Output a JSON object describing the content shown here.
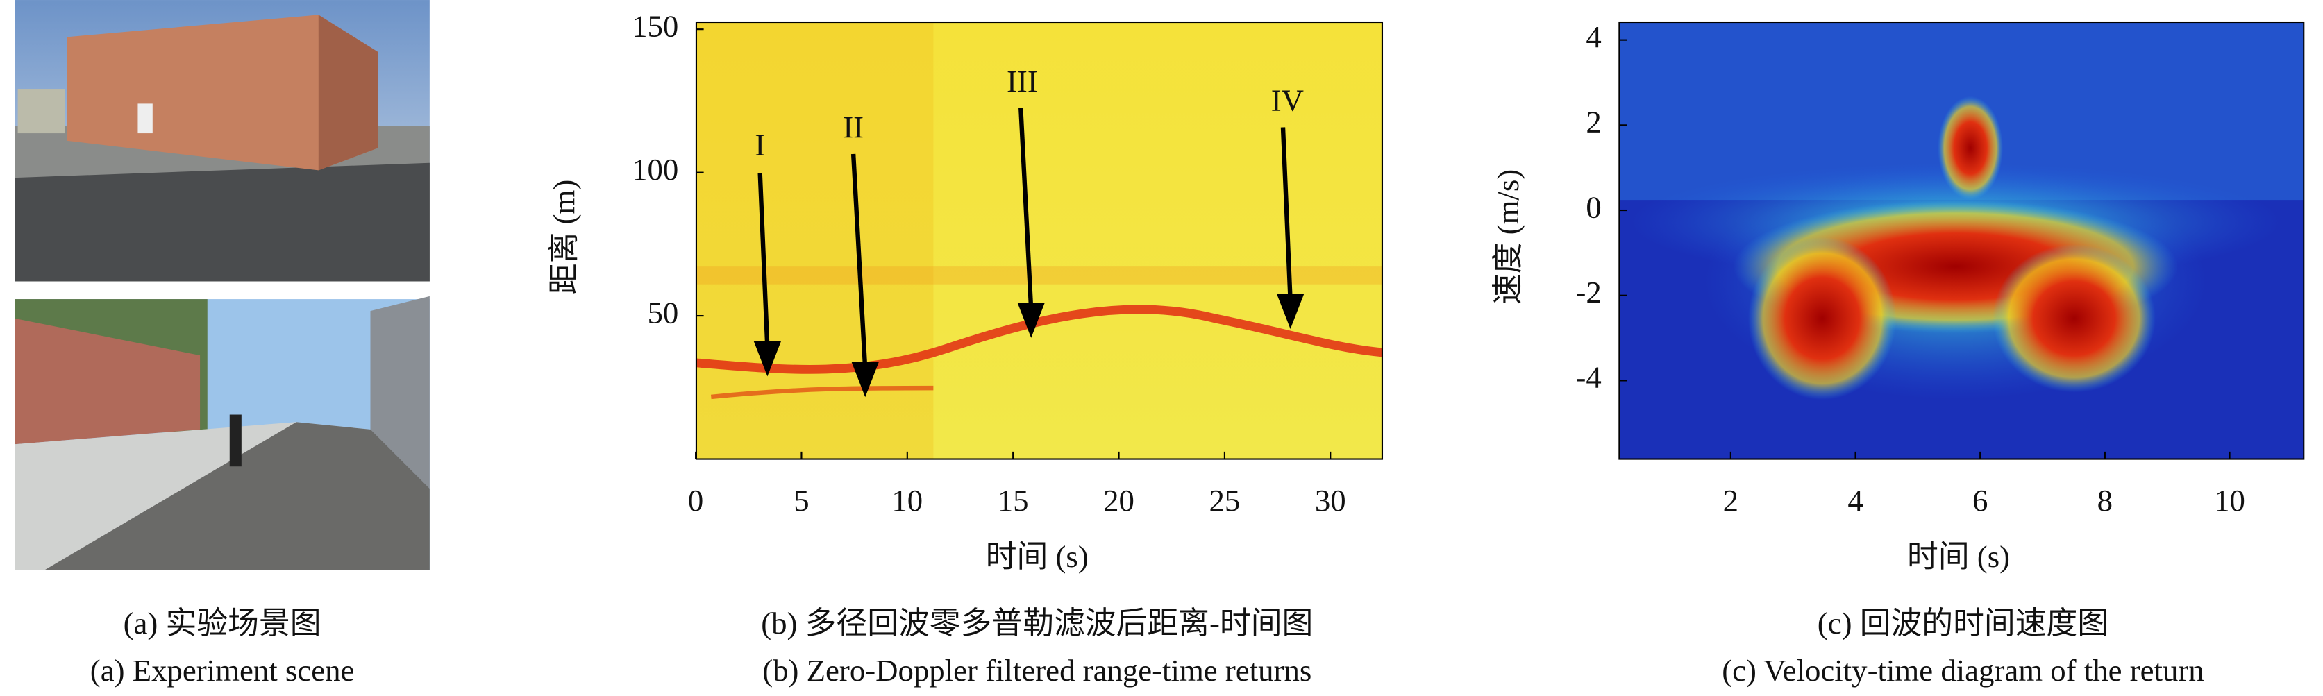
{
  "panels": [
    {
      "caption_zh": "(a) 实验场景图",
      "caption_en": "(a) Experiment scene"
    },
    {
      "caption_zh": "(b) 多径回波零多普勒滤波后距离-时间图",
      "caption_en": "(b) Zero-Doppler filtered range-time returns",
      "xlabel": "时间 (s)",
      "ylabel": "距离 (m)",
      "xticks": [
        0,
        5,
        10,
        15,
        20,
        25,
        30
      ],
      "yticks": [
        50,
        100,
        150
      ],
      "annotations": [
        "I",
        "II",
        "III",
        "IV"
      ]
    },
    {
      "caption_zh": "(c) 回波的时间速度图",
      "caption_en": "(c) Velocity-time diagram of the return",
      "xlabel": "时间 (s)",
      "ylabel": "速度 (m/s)",
      "xticks": [
        2,
        4,
        6,
        8,
        10
      ],
      "yticks": [
        -4,
        -2,
        0,
        2,
        4
      ]
    }
  ]
}
